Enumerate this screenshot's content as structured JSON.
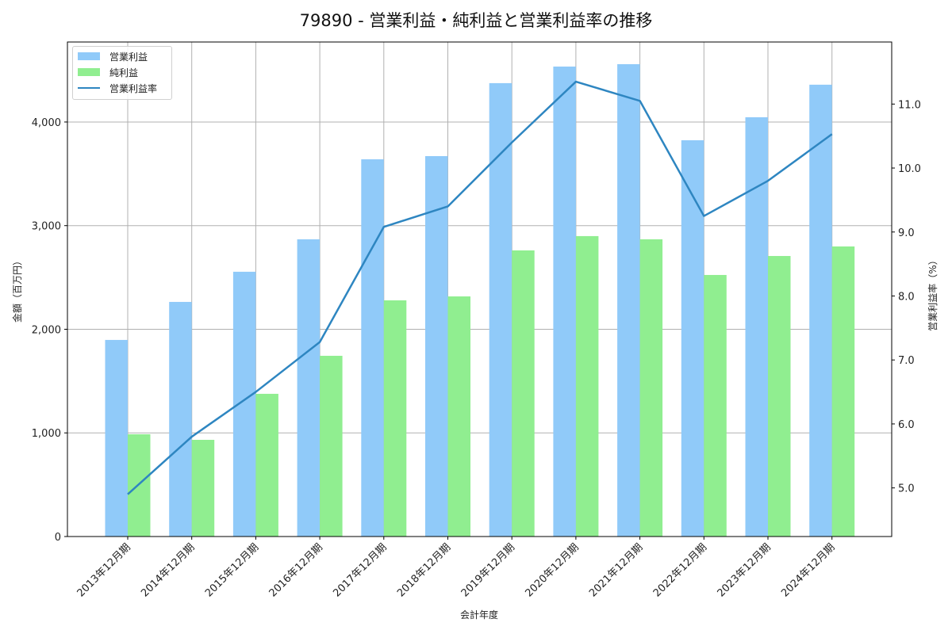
{
  "title": "79890 - 営業利益・純利益と営業利益率の推移",
  "legend": {
    "operating_profit": "営業利益",
    "net_profit": "純利益",
    "operating_margin": "営業利益率"
  },
  "colors": {
    "operating_profit": "#90caf9",
    "net_profit": "#90ee90",
    "operating_margin": "#2e86c1",
    "grid": "#b0b0b0"
  },
  "chart_data": {
    "type": "bar",
    "title": "79890 - 営業利益・純利益と営業利益率の推移",
    "xlabel": "会計年度",
    "ylabel": "金額（百万円）",
    "y2label": "営業利益率（%）",
    "categories": [
      "2013年12月期",
      "2014年12月期",
      "2015年12月期",
      "2016年12月期",
      "2017年12月期",
      "2018年12月期",
      "2019年12月期",
      "2020年12月期",
      "2021年12月期",
      "2022年12月期",
      "2023年12月期",
      "2024年12月期"
    ],
    "series": [
      {
        "name": "営業利益",
        "type": "bar",
        "axis": "left",
        "values": [
          1897,
          2264,
          2555,
          2868,
          3640,
          3671,
          4375,
          4535,
          4558,
          3824,
          4046,
          4360
        ]
      },
      {
        "name": "純利益",
        "type": "bar",
        "axis": "left",
        "values": [
          987,
          933,
          1377,
          1744,
          2279,
          2317,
          2761,
          2899,
          2868,
          2524,
          2707,
          2799
        ]
      },
      {
        "name": "営業利益率",
        "type": "line",
        "axis": "right",
        "values": [
          4.9,
          5.8,
          6.5,
          7.28,
          9.08,
          9.4,
          10.4,
          11.35,
          11.05,
          9.25,
          9.8,
          10.53
        ]
      }
    ],
    "ylim": [
      0,
      4772
    ],
    "y2lim": [
      4.24,
      11.97
    ],
    "yticks": [
      0,
      1000,
      2000,
      3000,
      4000
    ],
    "ytick_labels": [
      "0",
      "1,000",
      "2,000",
      "3,000",
      "4,000"
    ],
    "y2ticks": [
      5.0,
      6.0,
      7.0,
      8.0,
      9.0,
      10.0,
      11.0
    ],
    "y2tick_labels": [
      "5.0",
      "6.0",
      "7.0",
      "8.0",
      "9.0",
      "10.0",
      "11.0"
    ],
    "grid": true,
    "legend_position": "upper left"
  }
}
